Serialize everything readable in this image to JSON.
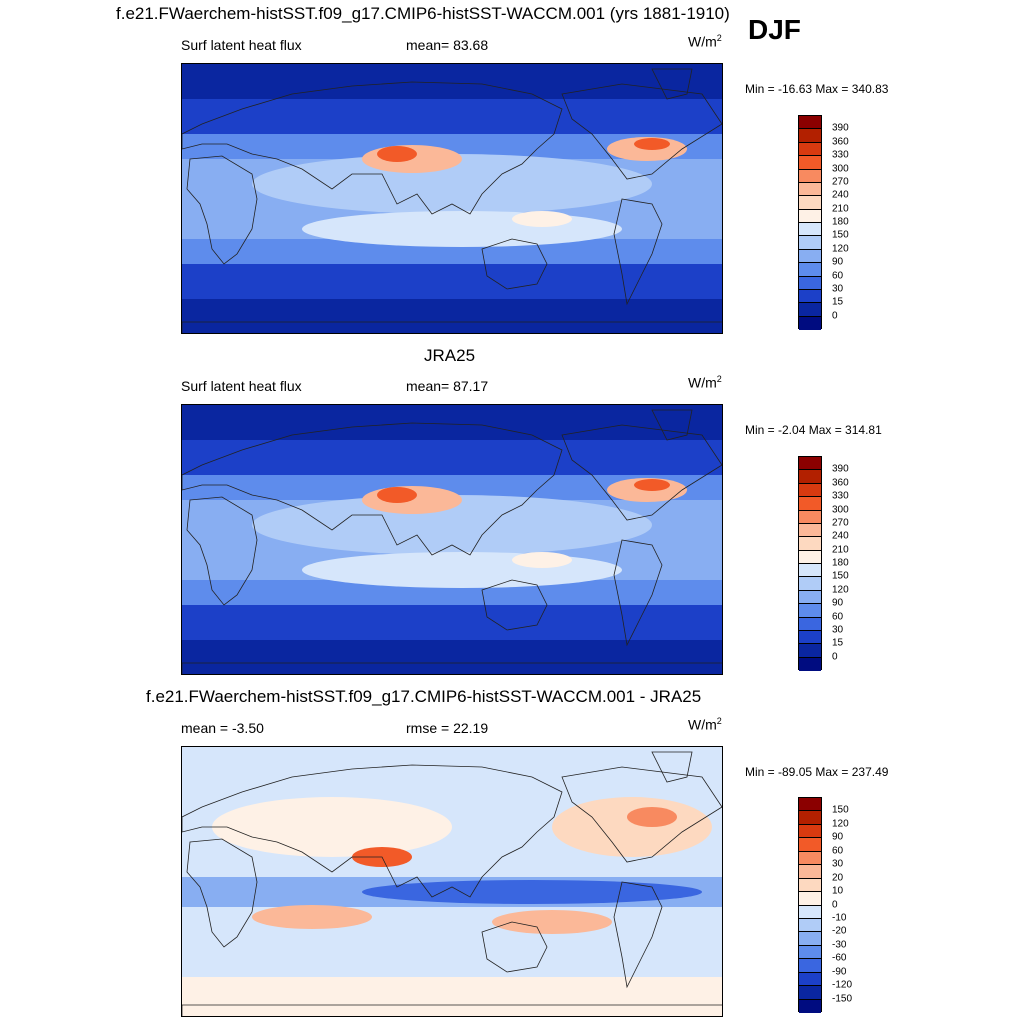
{
  "season": "DJF",
  "panels": [
    {
      "title": "f.e21.FWaerchem-histSST.f09_g17.CMIP6-histSST-WACCM.001 (yrs 1881-1910)",
      "left_label": "Surf latent heat flux",
      "center_label": "mean=  83.68",
      "units": "W/m",
      "units_exp": "2",
      "minmax": "Min = -16.63 Max = 340.83",
      "colorbar_labels": [
        "390",
        "360",
        "330",
        "300",
        "270",
        "240",
        "210",
        "180",
        "150",
        "120",
        "90",
        "60",
        "30",
        "15",
        "0"
      ]
    },
    {
      "title": "JRA25",
      "left_label": "Surf latent heat flux",
      "center_label": "mean=  87.17",
      "units": "W/m",
      "units_exp": "2",
      "minmax": "Min =  -2.04 Max = 314.81",
      "colorbar_labels": [
        "390",
        "360",
        "330",
        "300",
        "270",
        "240",
        "210",
        "180",
        "150",
        "120",
        "90",
        "60",
        "30",
        "15",
        "0"
      ]
    },
    {
      "title": "f.e21.FWaerchem-histSST.f09_g17.CMIP6-histSST-WACCM.001 - JRA25",
      "left_label": "mean =  -3.50",
      "center_label": "rmse =  22.19",
      "units": "W/m",
      "units_exp": "2",
      "minmax": "Min = -89.05 Max = 237.49",
      "colorbar_labels": [
        "150",
        "120",
        "90",
        "60",
        "30",
        "20",
        "10",
        "0",
        "-10",
        "-20",
        "-30",
        "-60",
        "-90",
        "-120",
        "-150"
      ]
    }
  ],
  "colors": {
    "abs_scale": [
      "#8b0000",
      "#b22000",
      "#d83a10",
      "#f25a28",
      "#f88a60",
      "#fbb898",
      "#fdd9c0",
      "#fef1e6",
      "#d6e6fb",
      "#b0ccf7",
      "#88aef2",
      "#5e8cec",
      "#3a66e0",
      "#1c40c8",
      "#0a26a0",
      "#000c80"
    ],
    "diff_scale": [
      "#8b0000",
      "#b22000",
      "#d83a10",
      "#f25a28",
      "#f88a60",
      "#fbb898",
      "#fdd9c0",
      "#fef1e6",
      "#d6e6fb",
      "#b0ccf7",
      "#88aef2",
      "#5e8cec",
      "#3a66e0",
      "#1c40c8",
      "#0a26a0",
      "#000c80"
    ],
    "land_outline": "#222222"
  },
  "chart_data": [
    {
      "type": "heatmap",
      "title": "f.e21.FWaerchem-histSST.f09_g17.CMIP6-histSST-WACCM.001 (yrs 1881-1910)",
      "subtitle": "Surf latent heat flux",
      "units": "W/m2",
      "mean": 83.68,
      "min": -16.63,
      "max": 340.83,
      "contour_levels": [
        0,
        15,
        30,
        60,
        90,
        120,
        150,
        180,
        210,
        240,
        270,
        300,
        330,
        360,
        390
      ]
    },
    {
      "type": "heatmap",
      "title": "JRA25",
      "subtitle": "Surf latent heat flux",
      "units": "W/m2",
      "mean": 87.17,
      "min": -2.04,
      "max": 314.81,
      "contour_levels": [
        0,
        15,
        30,
        60,
        90,
        120,
        150,
        180,
        210,
        240,
        270,
        300,
        330,
        360,
        390
      ]
    },
    {
      "type": "heatmap",
      "title": "f.e21.FWaerchem-histSST.f09_g17.CMIP6-histSST-WACCM.001 - JRA25",
      "units": "W/m2",
      "mean": -3.5,
      "rmse": 22.19,
      "min": -89.05,
      "max": 237.49,
      "contour_levels": [
        -150,
        -120,
        -90,
        -60,
        -30,
        -20,
        -10,
        0,
        10,
        20,
        30,
        60,
        90,
        120,
        150
      ]
    }
  ]
}
